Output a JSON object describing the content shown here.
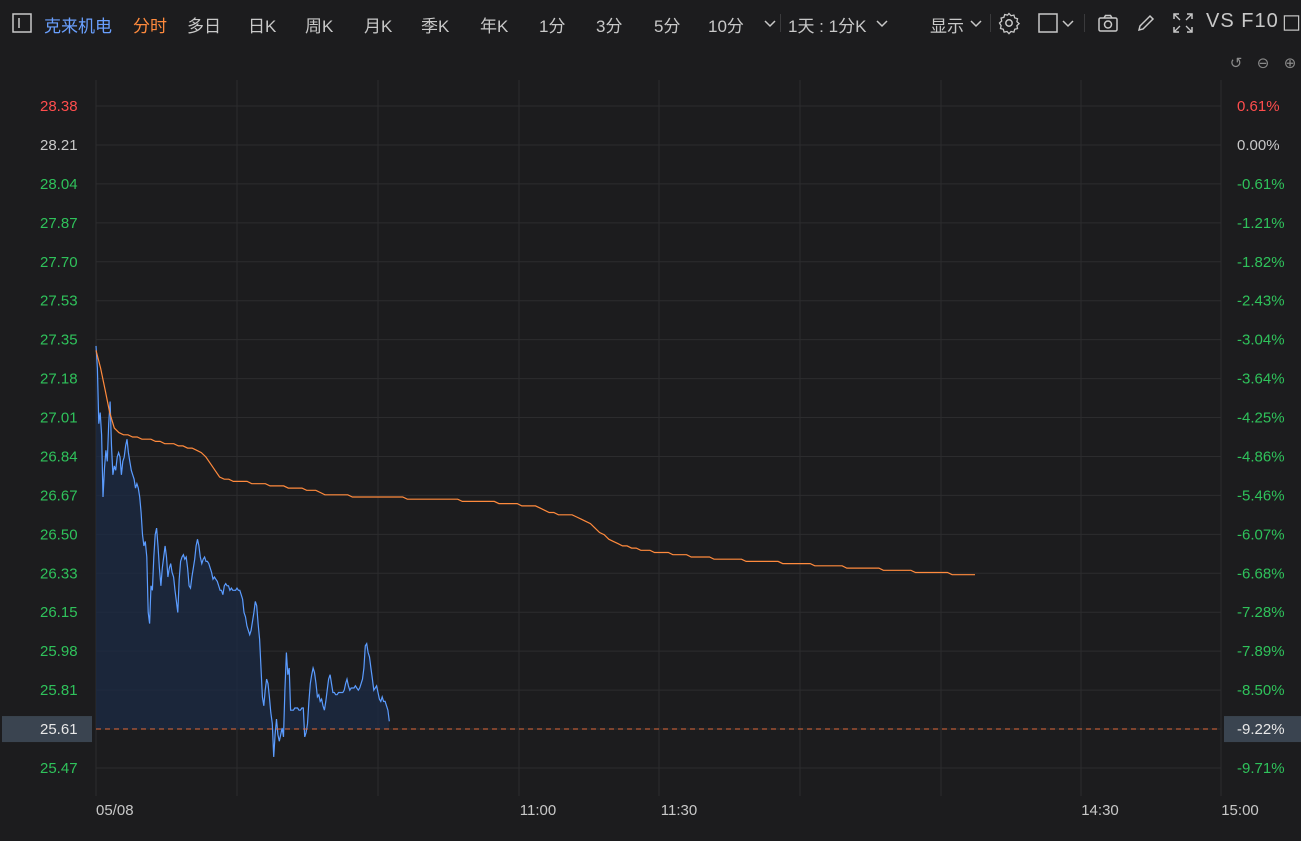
{
  "toolbar": {
    "stock_name": "克来机电",
    "tabs": [
      "分时",
      "多日",
      "日K",
      "周K",
      "月K",
      "季K",
      "年K",
      "1分",
      "3分",
      "5分",
      "10分"
    ],
    "period": "1天 : 1分K",
    "display": "显示",
    "vs_f10": "VS F10"
  },
  "colors": {
    "price_line": "#5b9cff",
    "avg_line": "#ff8a3d",
    "up": "#ff4d4d",
    "down": "#2fc25b",
    "grid": "#2c2c2e",
    "ref": "#e06a3c"
  },
  "chart_data": {
    "type": "line",
    "x_ticks": [
      "05/08",
      "11:00",
      "11:30",
      "14:30",
      "15:00"
    ],
    "y_ticks_left": [
      "28.38",
      "28.21",
      "28.04",
      "27.87",
      "27.70",
      "27.53",
      "27.35",
      "27.18",
      "27.01",
      "26.84",
      "26.67",
      "26.50",
      "26.33",
      "26.15",
      "25.98",
      "25.81",
      "25.61",
      "25.47"
    ],
    "y_ticks_right": [
      "0.61%",
      "0.00%",
      "-0.61%",
      "-1.21%",
      "-1.82%",
      "-2.43%",
      "-3.04%",
      "-3.64%",
      "-4.25%",
      "-4.86%",
      "-5.46%",
      "-6.07%",
      "-6.68%",
      "-7.28%",
      "-7.89%",
      "-8.50%",
      "-9.22%",
      "-9.71%"
    ],
    "current_price": "25.61",
    "current_pct": "-9.22%",
    "ylim": [
      25.4,
      28.38
    ],
    "series": [
      {
        "values": [
          27.3,
          27.2,
          26.95,
          27.0,
          26.9,
          26.62,
          26.75,
          26.83,
          26.78,
          26.95,
          27.05,
          26.85,
          26.72,
          26.76,
          26.74,
          26.8,
          26.82,
          26.8,
          26.72,
          26.78,
          26.8,
          26.85,
          26.88,
          26.82,
          26.78,
          26.74,
          26.72,
          26.7,
          26.66,
          26.68,
          26.66,
          26.62,
          26.55,
          26.45,
          26.4,
          26.42,
          26.35,
          26.1,
          26.05,
          26.22,
          26.2,
          26.35,
          26.45,
          26.48,
          26.4,
          26.3,
          26.22,
          26.3,
          26.35,
          26.4,
          26.35,
          26.26,
          26.3,
          26.32,
          26.28,
          26.26,
          26.2,
          26.15,
          26.1,
          26.25,
          26.33,
          26.35,
          26.36,
          26.34,
          26.35,
          26.3,
          26.22,
          26.21,
          26.26,
          26.3,
          26.34,
          26.4,
          26.43,
          26.4,
          26.35,
          26.32,
          26.34,
          26.35,
          26.33,
          26.33,
          26.32,
          26.3,
          26.28,
          26.25,
          26.26,
          26.25,
          26.24,
          26.22,
          26.2,
          26.2,
          26.18,
          26.22,
          26.23,
          26.22,
          26.22,
          26.2,
          26.21,
          26.2,
          26.2,
          26.2,
          26.21,
          26.2,
          26.2,
          26.18,
          26.16,
          26.1,
          26.08,
          26.04,
          26.02,
          26.0,
          26.02,
          26.06,
          26.1,
          26.15,
          26.13,
          26.05,
          25.98,
          25.85,
          25.72,
          25.68,
          25.75,
          25.8,
          25.78,
          25.72,
          25.65,
          25.6,
          25.45,
          25.55,
          25.62,
          25.55,
          25.52,
          25.55,
          25.58,
          25.54,
          25.75,
          25.92,
          25.82,
          25.85,
          25.66,
          25.66,
          25.66,
          25.67,
          25.67,
          25.67,
          25.66,
          25.66,
          25.67,
          25.67,
          25.54,
          25.56,
          25.6,
          25.7,
          25.78,
          25.82,
          25.85,
          25.83,
          25.78,
          25.72,
          25.73,
          25.7,
          25.71,
          25.68,
          25.66,
          25.7,
          25.75,
          25.8,
          25.82,
          25.78,
          25.74,
          25.74,
          25.73,
          25.73,
          25.74,
          25.74,
          25.74,
          25.74,
          25.75,
          25.78,
          25.8,
          25.77,
          25.75,
          25.76,
          25.76,
          25.76,
          25.77,
          25.76,
          25.75,
          25.76,
          25.78,
          25.8,
          25.85,
          25.95,
          25.96,
          25.92,
          25.9,
          25.85,
          25.8,
          25.75,
          25.76,
          25.77,
          25.74,
          25.71,
          25.7,
          25.72,
          25.7,
          25.7,
          25.68,
          25.66,
          25.61
        ]
      },
      {
        "values": [
          27.28,
          27.2,
          27.1,
          27.0,
          26.93,
          26.91,
          26.9,
          26.9,
          26.89,
          26.89,
          26.88,
          26.88,
          26.88,
          26.87,
          26.87,
          26.86,
          26.86,
          26.86,
          26.85,
          26.85,
          26.84,
          26.84,
          26.83,
          26.82,
          26.8,
          26.77,
          26.74,
          26.71,
          26.7,
          26.7,
          26.69,
          26.69,
          26.69,
          26.69,
          26.68,
          26.68,
          26.68,
          26.68,
          26.67,
          26.67,
          26.67,
          26.67,
          26.66,
          26.66,
          26.66,
          26.66,
          26.65,
          26.65,
          26.65,
          26.64,
          26.63,
          26.63,
          26.63,
          26.63,
          26.63,
          26.63,
          26.62,
          26.62,
          26.62,
          26.62,
          26.62,
          26.62,
          26.62,
          26.62,
          26.62,
          26.62,
          26.62,
          26.62,
          26.61,
          26.61,
          26.61,
          26.61,
          26.61,
          26.61,
          26.61,
          26.61,
          26.61,
          26.61,
          26.61,
          26.61,
          26.6,
          26.6,
          26.6,
          26.6,
          26.6,
          26.6,
          26.6,
          26.6,
          26.59,
          26.59,
          26.59,
          26.59,
          26.59,
          26.58,
          26.58,
          26.58,
          26.58,
          26.57,
          26.56,
          26.55,
          26.55,
          26.54,
          26.54,
          26.54,
          26.54,
          26.53,
          26.52,
          26.51,
          26.5,
          26.48,
          26.46,
          26.45,
          26.43,
          26.42,
          26.41,
          26.4,
          26.4,
          26.39,
          26.39,
          26.38,
          26.38,
          26.38,
          26.37,
          26.37,
          26.37,
          26.37,
          26.36,
          26.36,
          26.36,
          26.36,
          26.35,
          26.35,
          26.35,
          26.35,
          26.35,
          26.34,
          26.34,
          26.34,
          26.34,
          26.34,
          26.34,
          26.34,
          26.33,
          26.33,
          26.33,
          26.33,
          26.33,
          26.33,
          26.33,
          26.33,
          26.32,
          26.32,
          26.32,
          26.32,
          26.32,
          26.32,
          26.32,
          26.31,
          26.31,
          26.31,
          26.31,
          26.31,
          26.31,
          26.31,
          26.3,
          26.3,
          26.3,
          26.3,
          26.3,
          26.3,
          26.3,
          26.3,
          26.29,
          26.29,
          26.29,
          26.29,
          26.29,
          26.29,
          26.29,
          26.28,
          26.28,
          26.28,
          26.28,
          26.28,
          26.28,
          26.28,
          26.28,
          26.27,
          26.27,
          26.27,
          26.27,
          26.27,
          26.27
        ]
      }
    ]
  }
}
